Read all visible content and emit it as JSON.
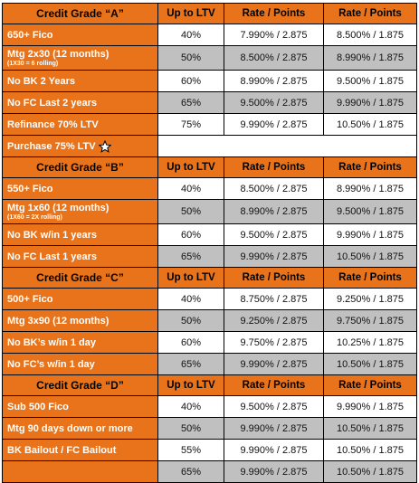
{
  "sections": [
    {
      "header": [
        "Credit Grade “A”",
        "Up to LTV",
        "Rate / Points",
        "Rate / Points"
      ],
      "rows": [
        {
          "label": "650+ Fico",
          "ltv": "40%",
          "rate1": "7.990% / 2.875",
          "rate2": "8.500% / 1.875"
        },
        {
          "label": "Mtg 2x30 (12 months)",
          "note": "(1X30 = 6 rolling)",
          "ltv": "50%",
          "rate1": "8.500% / 2.875",
          "rate2": "8.990% / 1.875"
        },
        {
          "label": "No BK 2 Years",
          "ltv": "60%",
          "rate1": "8.990% / 2.875",
          "rate2": "9.500% / 1.875"
        },
        {
          "label": "No FC Last 2 years",
          "ltv": "65%",
          "rate1": "9.500% / 2.875",
          "rate2": "9.990% / 1.875"
        },
        {
          "label": "Refinance 70% LTV",
          "ltv": "75%",
          "rate1": "9.990% / 2.875",
          "rate2": "10.50% / 1.875"
        },
        {
          "label": "Purchase 75% LTV"
        }
      ]
    },
    {
      "header": [
        "Credit Grade “B”",
        "Up to LTV",
        "Rate / Points",
        "Rate / Points"
      ],
      "rows": [
        {
          "label": "550+ Fico",
          "ltv": "40%",
          "rate1": "8.500% / 2.875",
          "rate2": "8.990% / 1.875"
        },
        {
          "label": "Mtg 1x60 (12 months)",
          "note": "(1X60 = 2X rolling)",
          "ltv": "50%",
          "rate1": "8.990% / 2.875",
          "rate2": "9.500% / 1.875"
        },
        {
          "label": "No BK w/in 1 years",
          "ltv": "60%",
          "rate1": "9.500% / 2.875",
          "rate2": "9.990% / 1.875"
        },
        {
          "label": "No FC Last 1 years",
          "ltv": "65%",
          "rate1": "9.990% / 2.875",
          "rate2": "10.50% / 1.875"
        }
      ]
    },
    {
      "header": [
        "Credit Grade “C”",
        "Up to LTV",
        "Rate / Points",
        "Rate / Points"
      ],
      "rows": [
        {
          "label": "500+ Fico",
          "ltv": "40%",
          "rate1": "8.750% / 2.875",
          "rate2": "9.250% / 1.875"
        },
        {
          "label": "Mtg 3x90 (12 months)",
          "ltv": "50%",
          "rate1": "9.250% / 2.875",
          "rate2": "9.750% / 1.875"
        },
        {
          "label": "No BK’s  w/in 1 day",
          "ltv": "60%",
          "rate1": "9.750% / 2.875",
          "rate2": "10.25% / 1.875"
        },
        {
          "label": "No FC’s  w/in 1 day",
          "ltv": "65%",
          "rate1": "9.990% / 2.875",
          "rate2": "10.50% / 1.875"
        }
      ]
    },
    {
      "header": [
        "Credit Grade “D”",
        "Up to LTV",
        "Rate / Points",
        "Rate / Points"
      ],
      "rows": [
        {
          "label": "Sub 500 Fico",
          "ltv": "40%",
          "rate1": "9.500% / 2.875",
          "rate2": "9.990% / 1.875"
        },
        {
          "label": "Mtg 90 days down or more",
          "ltv": "50%",
          "rate1": "9.990% / 2.875",
          "rate2": "10.50% / 1.875"
        },
        {
          "label": "BK Bailout / FC Bailout",
          "ltv": "55%",
          "rate1": "9.990% / 2.875",
          "rate2": "10.50% / 1.875"
        },
        {
          "ltv": "65%",
          "rate1": "9.990% / 2.875",
          "rate2": "10.50% / 1.875"
        }
      ]
    }
  ]
}
